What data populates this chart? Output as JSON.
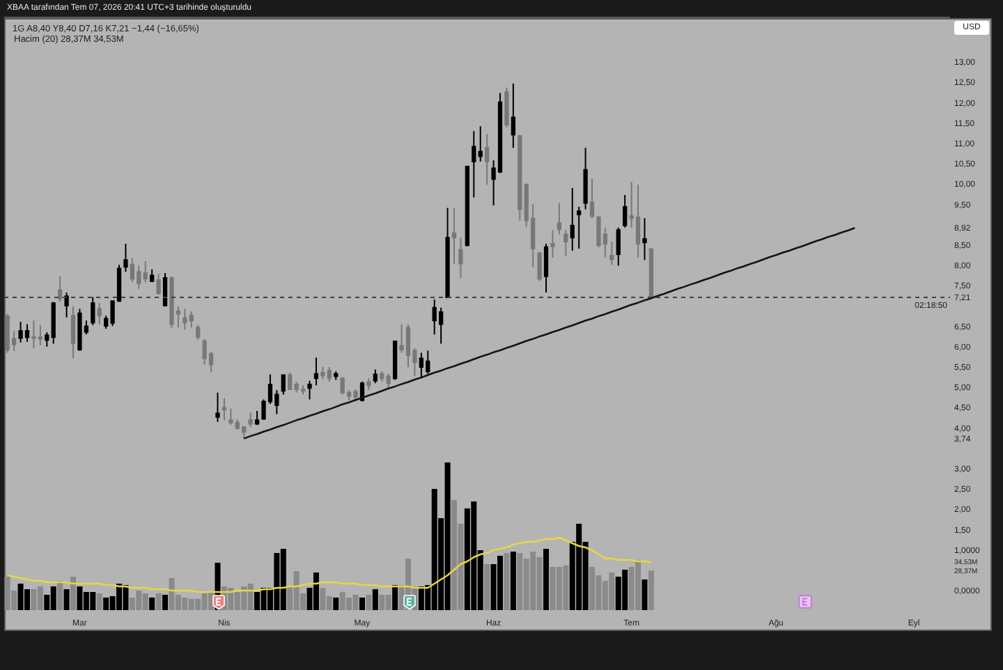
{
  "chart_data": {
    "type": "candlestick",
    "title": "1G A8,40 Y8,40 D7,16 K7,21 −1,44 (−16,65%)",
    "subtitle": "Hacim (20) 28,37M 34,53M",
    "annotations": [
      "XBAA tarafından Tem 07, 2026 20:41 UTC+3 tarihinde oluşturuldu",
      "USD",
      "02:18:50"
    ],
    "categories": [
      null,
      null,
      null,
      null,
      null,
      null,
      null,
      null,
      null,
      null,
      null,
      "Mar",
      null,
      null,
      null,
      null,
      null,
      null,
      null,
      null,
      null,
      null,
      null,
      null,
      null,
      null,
      null,
      null,
      null,
      null,
      null,
      null,
      null,
      "Nis",
      null,
      null,
      null,
      null,
      null,
      null,
      null,
      null,
      null,
      null,
      null,
      null,
      null,
      null,
      null,
      null,
      null,
      null,
      null,
      null,
      "May",
      null,
      null,
      null,
      null,
      null,
      null,
      null,
      null,
      null,
      null,
      null,
      null,
      null,
      null,
      null,
      null,
      null,
      null,
      null,
      "Haz",
      null,
      null,
      null,
      null,
      null,
      null,
      null,
      null,
      null,
      null,
      null,
      null,
      null,
      null,
      null,
      null,
      null,
      null,
      null,
      null,
      "Tem",
      null,
      null,
      null,
      null,
      null,
      null,
      null,
      null,
      null,
      null,
      null,
      null,
      null,
      null,
      null,
      null,
      null,
      null,
      null,
      null,
      null,
      "Ağu",
      null,
      null,
      null,
      null,
      null,
      null,
      null,
      null,
      null,
      null,
      null,
      null,
      null,
      null,
      null,
      null,
      null,
      null,
      null,
      null,
      "Eyl",
      null,
      null,
      null,
      null,
      null
    ],
    "ohlc": [
      [
        6.75,
        6.8,
        5.85,
        5.92
      ],
      [
        6.19,
        6.38,
        5.89,
        6.05
      ],
      [
        6.21,
        6.61,
        6.1,
        6.39
      ],
      [
        6.23,
        6.55,
        6.12,
        6.39
      ],
      [
        6.24,
        6.64,
        5.96,
        6.21
      ],
      [
        6.23,
        6.53,
        6.03,
        6.19
      ],
      [
        6.16,
        6.35,
        6.0,
        6.28
      ],
      [
        6.23,
        7.1,
        6.07,
        7.07
      ],
      [
        7.39,
        7.73,
        7.1,
        7.18
      ],
      [
        7.01,
        7.33,
        6.72,
        7.24
      ],
      [
        6.76,
        6.99,
        5.71,
        6.09
      ],
      [
        5.92,
        6.93,
        5.9,
        6.82
      ],
      [
        6.36,
        6.64,
        6.3,
        6.5
      ],
      [
        6.59,
        7.22,
        6.53,
        7.07
      ],
      [
        6.93,
        7.07,
        6.55,
        6.76
      ],
      [
        6.51,
        6.76,
        6.44,
        6.69
      ],
      [
        6.58,
        7.14,
        6.51,
        7.12
      ],
      [
        7.12,
        8.01,
        7.1,
        7.92
      ],
      [
        7.96,
        8.53,
        7.84,
        8.13
      ],
      [
        8.01,
        8.18,
        7.59,
        7.67
      ],
      [
        7.84,
        7.99,
        7.42,
        7.56
      ],
      [
        7.81,
        8.1,
        7.58,
        7.67
      ],
      [
        7.61,
        7.9,
        7.59,
        7.75
      ],
      [
        7.64,
        7.79,
        7.28,
        7.31
      ],
      [
        7.01,
        7.81,
        6.99,
        7.69
      ],
      [
        7.69,
        7.73,
        6.46,
        6.55
      ],
      [
        6.87,
        6.99,
        6.47,
        6.81
      ],
      [
        6.7,
        6.93,
        6.42,
        6.59
      ],
      [
        6.76,
        6.87,
        6.47,
        6.64
      ],
      [
        6.47,
        6.53,
        6.17,
        6.24
      ],
      [
        6.13,
        6.19,
        5.56,
        5.71
      ],
      [
        5.82,
        5.87,
        5.37,
        5.56
      ],
      [
        4.27,
        4.87,
        4.15,
        4.36
      ],
      [
        4.5,
        4.73,
        4.19,
        4.45
      ],
      [
        4.19,
        4.48,
        4.08,
        4.13
      ],
      [
        4.13,
        4.21,
        3.96,
        3.99
      ],
      [
        4.02,
        4.04,
        3.74,
        3.9
      ],
      [
        4.19,
        4.38,
        4.02,
        4.1
      ],
      [
        4.1,
        4.42,
        4.07,
        4.19
      ],
      [
        4.22,
        4.7,
        4.2,
        4.65
      ],
      [
        4.65,
        5.32,
        4.59,
        5.07
      ],
      [
        4.56,
        4.93,
        4.34,
        4.82
      ],
      [
        4.91,
        5.32,
        4.82,
        5.3
      ],
      [
        5.3,
        5.36,
        4.93,
        4.95
      ],
      [
        5.07,
        5.14,
        4.87,
        4.95
      ],
      [
        4.95,
        5.05,
        4.82,
        4.91
      ],
      [
        4.98,
        5.16,
        4.7,
        5.07
      ],
      [
        5.22,
        5.73,
        5.05,
        5.33
      ],
      [
        5.36,
        5.5,
        5.2,
        5.29
      ],
      [
        5.41,
        5.5,
        5.14,
        5.23
      ],
      [
        5.27,
        5.39,
        5.18,
        5.33
      ],
      [
        5.22,
        5.25,
        4.82,
        4.87
      ],
      [
        4.87,
        4.93,
        4.68,
        4.79
      ],
      [
        4.89,
        4.95,
        4.65,
        4.76
      ],
      [
        4.68,
        5.14,
        4.65,
        5.1
      ],
      [
        5.13,
        5.22,
        4.93,
        5.05
      ],
      [
        5.16,
        5.44,
        5.1,
        5.32
      ],
      [
        5.33,
        5.39,
        5.14,
        5.22
      ],
      [
        5.27,
        5.33,
        4.99,
        5.1
      ],
      [
        5.22,
        6.15,
        5.18,
        6.13
      ],
      [
        6.02,
        6.55,
        5.85,
        5.93
      ],
      [
        6.47,
        6.55,
        5.5,
        5.79
      ],
      [
        5.9,
        5.96,
        5.27,
        5.62
      ],
      [
        5.5,
        5.85,
        5.22,
        5.71
      ],
      [
        5.39,
        5.9,
        5.33,
        5.64
      ],
      [
        6.64,
        7.16,
        6.3,
        6.96
      ],
      [
        6.55,
        6.96,
        6.07,
        6.85
      ],
      [
        7.21,
        9.41,
        7.21,
        8.68
      ],
      [
        8.79,
        9.41,
        8.04,
        8.68
      ],
      [
        8.38,
        8.68,
        7.69,
        8.04
      ],
      [
        8.49,
        10.45,
        8.47,
        10.43
      ],
      [
        10.55,
        11.3,
        9.67,
        10.92
      ],
      [
        10.68,
        11.42,
        10.55,
        10.8
      ],
      [
        10.89,
        11.23,
        9.98,
        10.55
      ],
      [
        10.12,
        10.58,
        9.47,
        10.39
      ],
      [
        10.3,
        12.24,
        10.27,
        12.01
      ],
      [
        12.26,
        12.37,
        11.39,
        11.46
      ],
      [
        11.21,
        12.47,
        10.89,
        11.64
      ],
      [
        11.18,
        11.21,
        9.1,
        9.38
      ],
      [
        9.98,
        10.01,
        8.95,
        9.1
      ],
      [
        9.15,
        9.5,
        7.95,
        8.41
      ],
      [
        8.3,
        8.33,
        7.61,
        7.67
      ],
      [
        7.73,
        8.53,
        7.33,
        8.45
      ],
      [
        8.53,
        8.87,
        8.19,
        8.47
      ],
      [
        9.04,
        9.53,
        8.76,
        8.89
      ],
      [
        8.76,
        8.87,
        8.24,
        8.58
      ],
      [
        8.68,
        9.9,
        8.36,
        8.98
      ],
      [
        9.25,
        9.44,
        8.41,
        9.33
      ],
      [
        9.53,
        10.89,
        9.38,
        10.35
      ],
      [
        9.55,
        10.13,
        9.16,
        9.21
      ],
      [
        9.18,
        9.21,
        8.45,
        8.49
      ],
      [
        8.76,
        8.93,
        8.19,
        8.53
      ],
      [
        8.24,
        8.58,
        8.01,
        8.15
      ],
      [
        8.27,
        8.93,
        7.99,
        8.87
      ],
      [
        8.98,
        9.73,
        8.93,
        9.44
      ],
      [
        9.21,
        10.05,
        8.93,
        9.16
      ],
      [
        9.18,
        9.98,
        8.19,
        8.53
      ],
      [
        8.56,
        9.16,
        8.13,
        8.65
      ],
      [
        8.4,
        8.4,
        7.16,
        7.21
      ],
      null,
      null,
      null,
      null,
      null,
      null,
      null,
      null,
      null,
      null,
      null,
      null,
      null,
      null,
      null,
      null,
      null,
      null,
      null,
      null,
      null,
      null,
      null,
      null,
      null,
      null,
      null,
      null,
      null,
      null,
      null,
      null,
      null,
      null,
      null,
      null,
      null,
      null,
      null,
      null,
      null,
      null,
      null,
      null,
      null
    ],
    "colors": [
      "#787878",
      "#787878",
      "#000000",
      "#000000",
      "#787878",
      "#787878",
      "#000000",
      "#000000",
      "#787878",
      "#000000",
      "#787878",
      "#000000",
      "#000000",
      "#000000",
      "#787878",
      "#000000",
      "#000000",
      "#000000",
      "#000000",
      "#787878",
      "#787878",
      "#787878",
      "#000000",
      "#787878",
      "#000000",
      "#787878",
      "#787878",
      "#787878",
      "#787878",
      "#787878",
      "#787878",
      "#787878",
      "#000000",
      "#787878",
      "#787878",
      "#787878",
      "#787878",
      "#787878",
      "#000000",
      "#000000",
      "#000000",
      "#000000",
      "#000000",
      "#787878",
      "#787878",
      "#787878",
      "#000000",
      "#000000",
      "#787878",
      "#787878",
      "#000000",
      "#787878",
      "#787878",
      "#787878",
      "#000000",
      "#787878",
      "#000000",
      "#787878",
      "#787878",
      "#000000",
      "#787878",
      "#787878",
      "#787878",
      "#000000",
      "#000000",
      "#000000",
      "#000000",
      "#000000",
      "#787878",
      "#787878",
      "#000000",
      "#000000",
      "#000000",
      "#787878",
      "#000000",
      "#000000",
      "#787878",
      "#000000",
      "#787878",
      "#787878",
      "#787878",
      "#787878",
      "#000000",
      "#787878",
      "#787878",
      "#787878",
      "#000000",
      "#000000",
      "#000000",
      "#787878",
      "#787878",
      "#787878",
      "#787878",
      "#000000",
      "#000000",
      "#787878",
      "#787878",
      "#000000",
      "#787878",
      null,
      null,
      null,
      null,
      null,
      null,
      null,
      null,
      null,
      null,
      null,
      null,
      null,
      null,
      null,
      null,
      null,
      null,
      null,
      null,
      null,
      null,
      null,
      null,
      null,
      null,
      null,
      null,
      null,
      null,
      null,
      null,
      null,
      null,
      null,
      null,
      null,
      null,
      null,
      null,
      null,
      null,
      null,
      null,
      null
    ],
    "series": [
      {
        "type": "bar",
        "axis": "y2",
        "values": [
          24,
          14,
          19,
          15,
          15,
          17,
          11,
          17,
          21,
          15,
          24,
          17,
          13,
          13,
          12,
          9,
          10,
          19,
          18,
          9,
          14,
          12,
          9,
          12,
          11,
          23,
          11,
          9,
          8,
          8,
          12,
          13,
          34,
          17,
          16,
          13,
          17,
          19,
          13,
          16,
          16,
          41,
          44,
          17,
          28,
          12,
          16,
          27,
          16,
          10,
          9,
          13,
          9,
          11,
          9,
          11,
          15,
          11,
          11,
          18,
          18,
          37,
          17,
          17,
          18,
          87,
          66,
          106,
          79,
          62,
          73,
          78,
          43,
          33,
          33,
          39,
          41,
          42,
          41,
          37,
          42,
          38,
          44,
          31,
          31,
          32,
          49,
          62,
          49,
          31,
          25,
          21,
          27,
          24,
          29,
          31,
          36,
          22,
          28.37,
          null,
          null,
          null,
          null,
          null,
          null,
          null,
          null,
          null,
          null,
          null,
          null,
          null,
          null,
          null,
          null,
          null,
          null,
          null,
          null,
          null,
          null,
          null,
          null,
          null,
          null,
          null,
          null,
          null,
          null,
          null,
          null,
          null,
          null,
          null,
          null,
          null,
          null,
          null,
          null,
          null,
          null,
          null,
          null,
          null
        ],
        "colors": [
          "#8a8a8a",
          "#8a8a8a",
          "#000000",
          "#000000",
          "#8a8a8a",
          "#8a8a8a",
          "#000000",
          "#000000",
          "#8a8a8a",
          "#000000",
          "#8a8a8a",
          "#000000",
          "#000000",
          "#000000",
          "#8a8a8a",
          "#000000",
          "#000000",
          "#000000",
          "#000000",
          "#8a8a8a",
          "#8a8a8a",
          "#8a8a8a",
          "#000000",
          "#8a8a8a",
          "#000000",
          "#8a8a8a",
          "#8a8a8a",
          "#8a8a8a",
          "#8a8a8a",
          "#8a8a8a",
          "#8a8a8a",
          "#8a8a8a",
          "#000000",
          "#8a8a8a",
          "#8a8a8a",
          "#8a8a8a",
          "#8a8a8a",
          "#8a8a8a",
          "#000000",
          "#000000",
          "#000000",
          "#000000",
          "#000000",
          "#8a8a8a",
          "#8a8a8a",
          "#8a8a8a",
          "#000000",
          "#000000",
          "#8a8a8a",
          "#8a8a8a",
          "#000000",
          "#8a8a8a",
          "#8a8a8a",
          "#8a8a8a",
          "#000000",
          "#8a8a8a",
          "#000000",
          "#8a8a8a",
          "#8a8a8a",
          "#000000",
          "#8a8a8a",
          "#8a8a8a",
          "#8a8a8a",
          "#000000",
          "#000000",
          "#000000",
          "#000000",
          "#000000",
          "#8a8a8a",
          "#8a8a8a",
          "#000000",
          "#000000",
          "#000000",
          "#8a8a8a",
          "#000000",
          "#000000",
          "#8a8a8a",
          "#000000",
          "#8a8a8a",
          "#8a8a8a",
          "#8a8a8a",
          "#8a8a8a",
          "#000000",
          "#8a8a8a",
          "#8a8a8a",
          "#8a8a8a",
          "#000000",
          "#000000",
          "#000000",
          "#8a8a8a",
          "#8a8a8a",
          "#8a8a8a",
          "#8a8a8a",
          "#000000",
          "#000000",
          "#8a8a8a",
          "#8a8a8a",
          "#000000",
          "#8a8a8a",
          null,
          null,
          null,
          null,
          null,
          null,
          null,
          null,
          null,
          null,
          null,
          null,
          null,
          null,
          null,
          null,
          null,
          null,
          null,
          null,
          null,
          null,
          null,
          null,
          null,
          null,
          null,
          null,
          null,
          null,
          null,
          null,
          null,
          null,
          null,
          null,
          null,
          null,
          null,
          null,
          null,
          null,
          null,
          null,
          null
        ]
      },
      {
        "type": "line",
        "axis": "y2",
        "color": "#e9d544",
        "values": [
          25,
          24,
          23,
          22,
          21,
          21,
          20,
          20,
          20,
          20,
          19,
          19,
          19,
          19,
          19,
          18,
          18,
          17,
          17,
          16,
          16,
          16,
          15,
          15,
          15,
          14,
          14,
          14,
          14,
          13,
          13,
          13,
          13,
          13,
          13,
          14,
          14,
          14,
          14,
          15,
          15,
          16,
          16,
          17,
          17,
          18,
          19,
          19,
          20,
          20,
          20,
          19,
          19,
          19,
          18,
          18,
          18,
          17,
          17,
          17,
          17,
          17,
          16,
          16,
          16,
          19,
          22,
          25,
          29,
          33,
          35,
          38,
          40,
          41,
          43,
          44,
          45,
          47,
          48,
          49,
          49,
          50,
          51,
          51,
          52,
          50,
          48,
          46,
          45,
          43,
          40,
          37,
          37,
          36,
          36,
          36,
          35,
          35,
          34.53,
          null,
          null,
          null,
          null,
          null,
          null,
          null,
          null,
          null,
          null,
          null,
          null,
          null,
          null,
          null,
          null,
          null,
          null,
          null,
          null,
          null,
          null,
          null,
          null,
          null,
          null,
          null,
          null,
          null,
          null,
          null,
          null,
          null,
          null,
          null,
          null,
          null,
          null,
          null,
          null,
          null,
          null,
          null,
          null,
          null
        ]
      },
      {
        "type": "line",
        "color": "#141414",
        "values": [
          null,
          null,
          null,
          null,
          null,
          null,
          null,
          null,
          null,
          null,
          null,
          null,
          null,
          null,
          null,
          null,
          null,
          null,
          null,
          null,
          null,
          null,
          null,
          null,
          null,
          null,
          null,
          null,
          null,
          null,
          null,
          null,
          null,
          null,
          null,
          null,
          3.74,
          3.8,
          3.85,
          3.91,
          3.96,
          4.02,
          4.07,
          4.13,
          4.19,
          4.24,
          4.3,
          4.35,
          4.41,
          4.46,
          4.52,
          4.58,
          4.63,
          4.69,
          4.74,
          4.8,
          4.85,
          4.91,
          4.97,
          5.02,
          5.08,
          5.13,
          5.19,
          5.24,
          5.3,
          5.36,
          5.41,
          5.47,
          5.52,
          5.58,
          5.63,
          5.69,
          5.75,
          5.8,
          5.86,
          5.91,
          5.97,
          6.02,
          6.08,
          6.14,
          6.19,
          6.25,
          6.3,
          6.36,
          6.41,
          6.47,
          6.52,
          6.58,
          6.64,
          6.69,
          6.75,
          6.8,
          6.86,
          6.91,
          6.97,
          7.03,
          7.08,
          7.14,
          7.19,
          7.25,
          7.3,
          7.36,
          7.42,
          7.47,
          7.53,
          7.58,
          7.64,
          7.69,
          7.75,
          7.81,
          7.86,
          7.92,
          7.97,
          8.03,
          8.08,
          8.14,
          8.2,
          8.25,
          8.31,
          8.36,
          8.42,
          8.47,
          8.53,
          8.59,
          8.64,
          8.7,
          8.75,
          8.81,
          8.86,
          8.92,
          null,
          null,
          null,
          null,
          null,
          null,
          null,
          null,
          null,
          null,
          null,
          null,
          null,
          null
        ]
      }
    ],
    "ylim": [
      -0.96,
      14.08
    ],
    "yticks": [
      {
        "value": 0,
        "label": "0,0000"
      },
      {
        "value": 1,
        "label": "1,0000"
      },
      {
        "value": 1.5,
        "label": "1,50"
      },
      {
        "value": 2,
        "label": "2,00"
      },
      {
        "value": 2.5,
        "label": "2,50"
      },
      {
        "value": 3,
        "label": "3,00"
      },
      {
        "value": 3.74,
        "label": "3,74"
      },
      {
        "value": 4,
        "label": "4,00"
      },
      {
        "value": 4.5,
        "label": "4,50"
      },
      {
        "value": 5,
        "label": "5,00"
      },
      {
        "value": 5.5,
        "label": "5,50"
      },
      {
        "value": 6,
        "label": "6,00"
      },
      {
        "value": 6.5,
        "label": "6,50"
      },
      {
        "value": 7.21,
        "label": "7,21"
      },
      {
        "value": 7.5,
        "label": "7,50"
      },
      {
        "value": 8,
        "label": "8,00"
      },
      {
        "value": 8.5,
        "label": "8,50"
      },
      {
        "value": 8.92,
        "label": "8,92"
      },
      {
        "value": 9.5,
        "label": "9,50"
      },
      {
        "value": 10,
        "label": "10,00"
      },
      {
        "value": 10.5,
        "label": "10,50"
      },
      {
        "value": 11,
        "label": "11,00"
      },
      {
        "value": 11.5,
        "label": "11,50"
      },
      {
        "value": 12,
        "label": "12,00"
      },
      {
        "value": 12.5,
        "label": "12,50"
      },
      {
        "value": 13,
        "label": "13,00"
      }
    ],
    "y2lim": [
      -14,
      425
    ],
    "y2ticks": [
      {
        "value": 34.53,
        "label": "34,53M"
      },
      {
        "value": 28.37,
        "label": "28,37M"
      }
    ],
    "ref_lines": [
      {
        "axis": "y",
        "value": 7.21,
        "color": "#404040",
        "line_style": "dotted"
      }
    ]
  }
}
